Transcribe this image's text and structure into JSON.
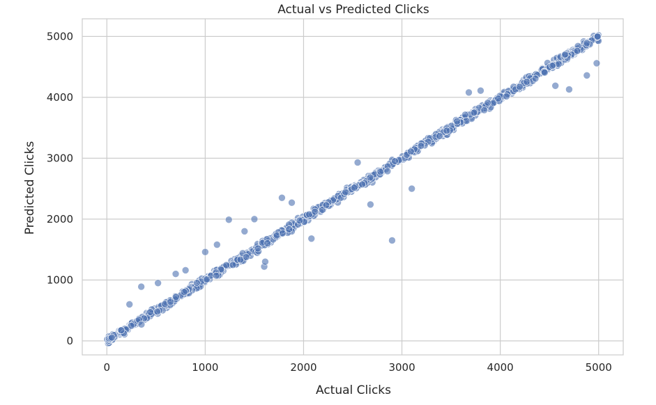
{
  "chart_data": {
    "type": "scatter",
    "title": "Actual vs Predicted Clicks",
    "xlabel": "Actual Clicks",
    "ylabel": "Predicted Clicks",
    "xlim": [
      -250,
      5250
    ],
    "ylim": [
      -230,
      5290
    ],
    "xticks": [
      0,
      1000,
      2000,
      3000,
      4000,
      5000
    ],
    "yticks": [
      0,
      1000,
      2000,
      3000,
      4000,
      5000
    ],
    "grid": true,
    "point_color": "#4c72b0",
    "reference_line": {
      "from": [
        0,
        0
      ],
      "to": [
        5000,
        5000
      ],
      "color": "#d9534f"
    },
    "outliers": [
      [
        230,
        600
      ],
      [
        350,
        890
      ],
      [
        520,
        950
      ],
      [
        700,
        1100
      ],
      [
        800,
        1160
      ],
      [
        1000,
        1460
      ],
      [
        1120,
        1580
      ],
      [
        1240,
        1990
      ],
      [
        1400,
        1800
      ],
      [
        1500,
        2000
      ],
      [
        1600,
        1220
      ],
      [
        1610,
        1300
      ],
      [
        1780,
        2350
      ],
      [
        1880,
        2270
      ],
      [
        2080,
        1680
      ],
      [
        2550,
        2930
      ],
      [
        2680,
        2240
      ],
      [
        2900,
        1650
      ],
      [
        3100,
        2500
      ],
      [
        3680,
        4080
      ],
      [
        3800,
        4110
      ],
      [
        4560,
        4190
      ],
      [
        4700,
        4130
      ],
      [
        4880,
        4360
      ],
      [
        4980,
        4560
      ]
    ]
  }
}
